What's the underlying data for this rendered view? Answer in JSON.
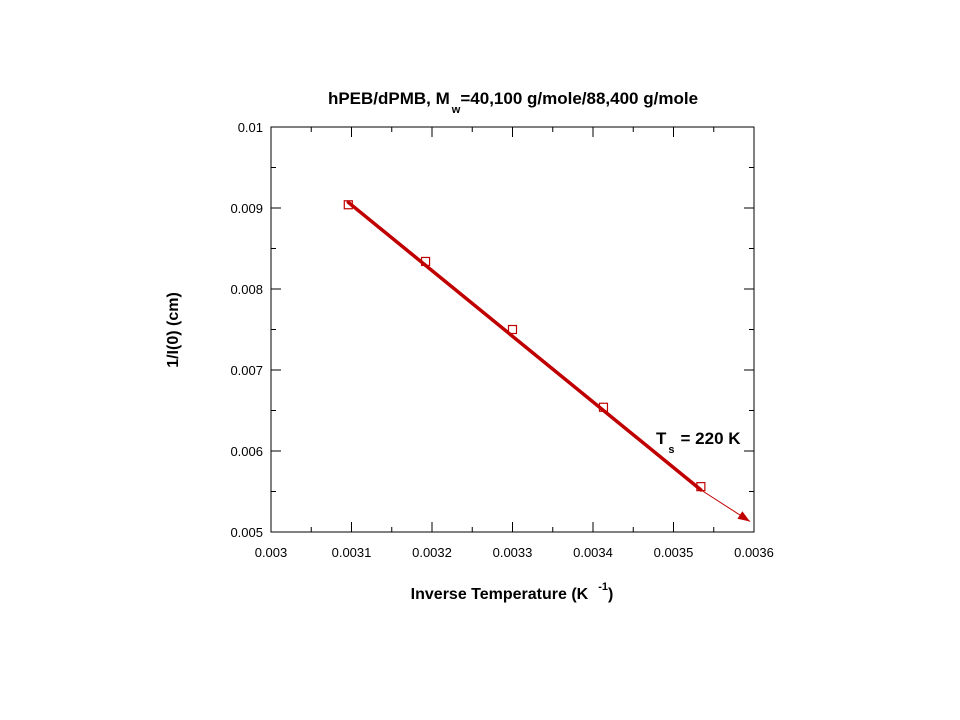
{
  "chart_data": {
    "type": "scatter",
    "title": {
      "main": "hPEB/dPMB, M",
      "subscript": "w",
      "rest": "=40,100 g/mole/88,400 g/mole"
    },
    "xlabel": {
      "main": "Inverse Temperature (K",
      "superscript": "-1",
      "close": ")"
    },
    "ylabel": "1/I(0) (cm)",
    "xlim": [
      0.003,
      0.0036
    ],
    "ylim": [
      0.005,
      0.01
    ],
    "x_ticks": [
      "0.003",
      "0.0031",
      "0.0032",
      "0.0033",
      "0.0034",
      "0.0035",
      "0.0036"
    ],
    "y_ticks": [
      "0.005",
      "0.006",
      "0.007",
      "0.008",
      "0.009",
      "0.01"
    ],
    "grid": false,
    "series": [
      {
        "marker": "square",
        "color": "#c00000",
        "x": [
          0.003096,
          0.003192,
          0.0033,
          0.003413,
          0.003534
        ],
        "y": [
          0.00904,
          0.00834,
          0.0075,
          0.00654,
          0.00556
        ]
      }
    ],
    "fit_line": {
      "color": "#c00000",
      "x": [
        0.003096,
        0.003534
      ],
      "y": [
        0.00907,
        0.00552
      ]
    },
    "extrapolation": {
      "color": "#c00000",
      "x": [
        0.003534,
        0.003595
      ],
      "y": [
        0.00552,
        0.00513
      ]
    },
    "annotation": {
      "main": "T",
      "subscript": "s",
      "rest": "= 220 K"
    }
  }
}
